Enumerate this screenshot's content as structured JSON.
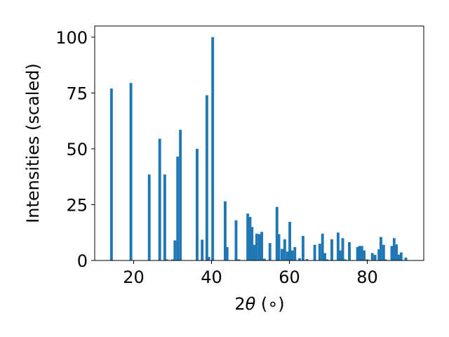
{
  "chart_data": {
    "type": "bar",
    "title": "",
    "xlabel_prefix": "2",
    "xlabel_symbol": "θ",
    "xlabel_suffix": " (∘)",
    "ylabel": "Intensities (scaled)",
    "xlim": [
      10,
      94.5
    ],
    "ylim": [
      0,
      105
    ],
    "xticks": [
      20,
      40,
      60,
      80
    ],
    "yticks": [
      0,
      25,
      50,
      75,
      100
    ],
    "grid": false,
    "bar_color": "#1f77b4",
    "bar_width": 0.7,
    "x": [
      14.3,
      19.3,
      24.0,
      26.7,
      28.0,
      28.5,
      30.0,
      30.6,
      31.3,
      32.0,
      36.3,
      37.6,
      38.8,
      39.3,
      40.3,
      43.5,
      44.0,
      46.3,
      47.0,
      49.3,
      49.9,
      50.4,
      51.0,
      51.6,
      52.3,
      52.9,
      53.6,
      55.0,
      56.8,
      57.3,
      58.1,
      58.8,
      59.5,
      60.1,
      60.7,
      61.4,
      62.6,
      63.5,
      64.5,
      66.5,
      67.8,
      68.5,
      69.1,
      69.7,
      70.9,
      72.5,
      73.1,
      73.7,
      74.3,
      75.4,
      77.5,
      78.0,
      78.6,
      79.2,
      80.0,
      81.3,
      82.0,
      83.0,
      83.5,
      84.2,
      84.7,
      86.3,
      86.9,
      87.5,
      88.1,
      88.7,
      89.9
    ],
    "values": [
      77,
      79.5,
      38.5,
      54.5,
      38.5,
      0.5,
      0.5,
      9,
      46.5,
      58.5,
      50,
      9.3,
      74,
      1.6,
      100,
      26.5,
      6,
      18,
      0.5,
      21,
      19.5,
      15,
      7,
      12,
      11.8,
      12.8,
      0.8,
      7.8,
      24,
      11.8,
      5.2,
      9.5,
      4,
      17.3,
      4.5,
      6,
      1,
      11,
      0.6,
      7,
      7.5,
      12,
      3.3,
      0.5,
      9.5,
      12.5,
      4.5,
      10,
      0.5,
      8.2,
      6,
      6.5,
      6.5,
      4.5,
      0.5,
      3.3,
      2.5,
      5,
      10.5,
      7,
      0.5,
      6.5,
      10,
      7.2,
      2.6,
      3.6,
      1.3
    ]
  }
}
